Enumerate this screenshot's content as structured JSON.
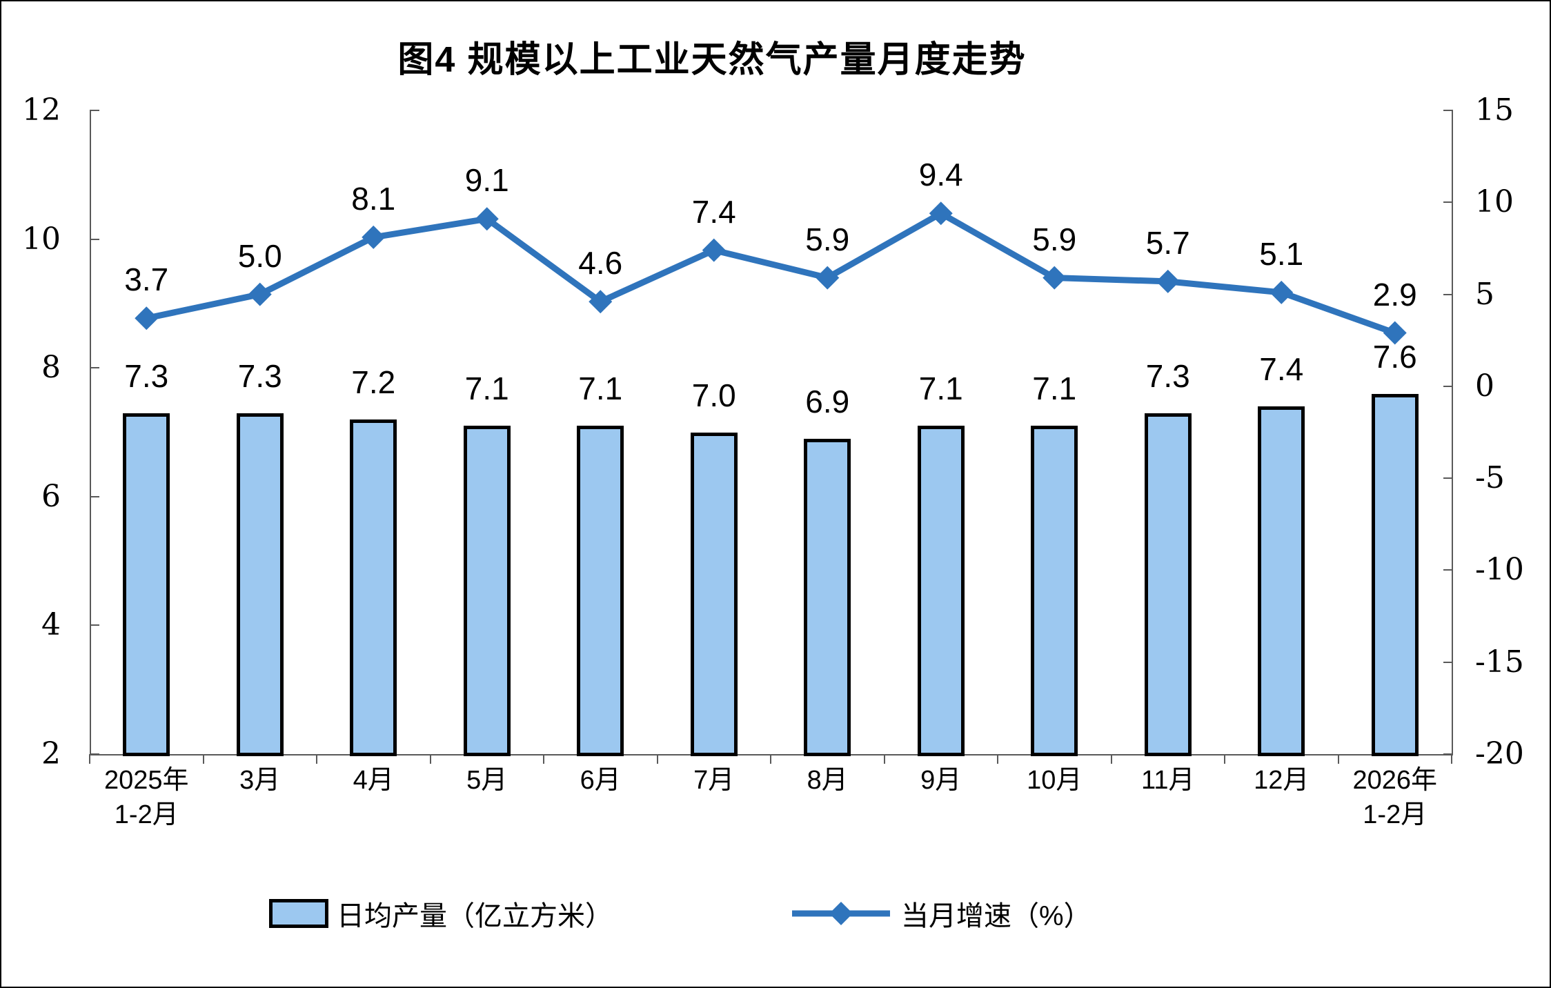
{
  "title": "图4 规模以上工业天然气产量月度走势",
  "legend": {
    "bar_label": "日均产量（亿立方米）",
    "line_label": "当月增速（%）"
  },
  "chart_data": {
    "type": "combo-bar-line",
    "title": "图4 规模以上工业天然气产量月度走势",
    "categories": [
      [
        "2025年",
        "1-2月"
      ],
      [
        "3月"
      ],
      [
        "4月"
      ],
      [
        "5月"
      ],
      [
        "6月"
      ],
      [
        "7月"
      ],
      [
        "8月"
      ],
      [
        "9月"
      ],
      [
        "10月"
      ],
      [
        "11月"
      ],
      [
        "12月"
      ],
      [
        "2026年",
        "1-2月"
      ]
    ],
    "series": [
      {
        "name": "日均产量（亿立方米）",
        "type": "bar",
        "axis": "left",
        "values": [
          7.3,
          7.3,
          7.2,
          7.1,
          7.1,
          7.0,
          6.9,
          7.1,
          7.1,
          7.3,
          7.4,
          7.6
        ]
      },
      {
        "name": "当月增速（%）",
        "type": "line",
        "axis": "right",
        "values": [
          3.7,
          5.0,
          8.1,
          9.1,
          4.6,
          7.4,
          5.9,
          9.4,
          5.9,
          5.7,
          5.1,
          2.9
        ]
      }
    ],
    "left_axis": {
      "min": 2,
      "max": 12,
      "ticks": [
        12,
        10,
        8,
        6,
        4,
        2
      ]
    },
    "right_axis": {
      "min": -20,
      "max": 15,
      "ticks": [
        15,
        10,
        5,
        0,
        -5,
        -10,
        -15,
        -20
      ]
    },
    "grid": false,
    "legend_position": "bottom",
    "colors": {
      "bar_fill": "#9CC8F0",
      "bar_border": "#000000",
      "line": "#2F74BC",
      "axis": "#595959",
      "text": "#000000"
    }
  }
}
